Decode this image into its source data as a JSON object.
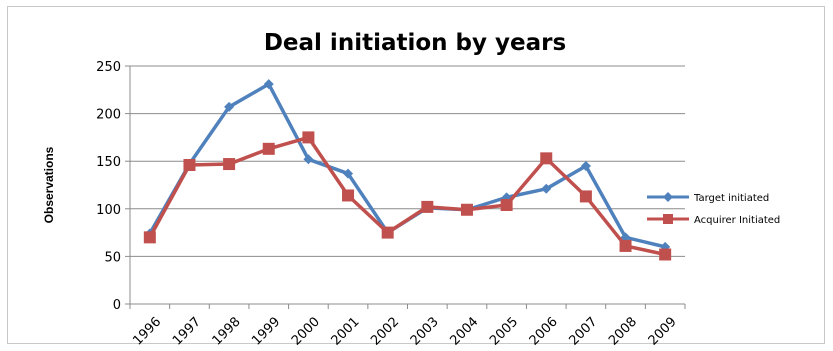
{
  "chart_data": {
    "type": "line",
    "title": "Deal initiation by years",
    "xlabel": "",
    "ylabel": "Observations",
    "ylim": [
      0,
      250
    ],
    "yticks": [
      0,
      50,
      100,
      150,
      200,
      250
    ],
    "grid": "horizontal",
    "legend_position": "right",
    "categories": [
      "1996",
      "1997",
      "1998",
      "1999",
      "2000",
      "2001",
      "2002",
      "2003",
      "2004",
      "2005",
      "2006",
      "2007",
      "2008",
      "2009"
    ],
    "series": [
      {
        "name": "Target initiated",
        "color": "#4F81BD",
        "marker": "diamond",
        "values": [
          74,
          147,
          207,
          231,
          152,
          137,
          75,
          101,
          99,
          112,
          121,
          145,
          70,
          60
        ]
      },
      {
        "name": "Acquirer Initiated",
        "color": "#C0504D",
        "marker": "square",
        "values": [
          70,
          146,
          147,
          163,
          175,
          114,
          75,
          102,
          99,
          104,
          153,
          113,
          61,
          52
        ]
      }
    ]
  }
}
